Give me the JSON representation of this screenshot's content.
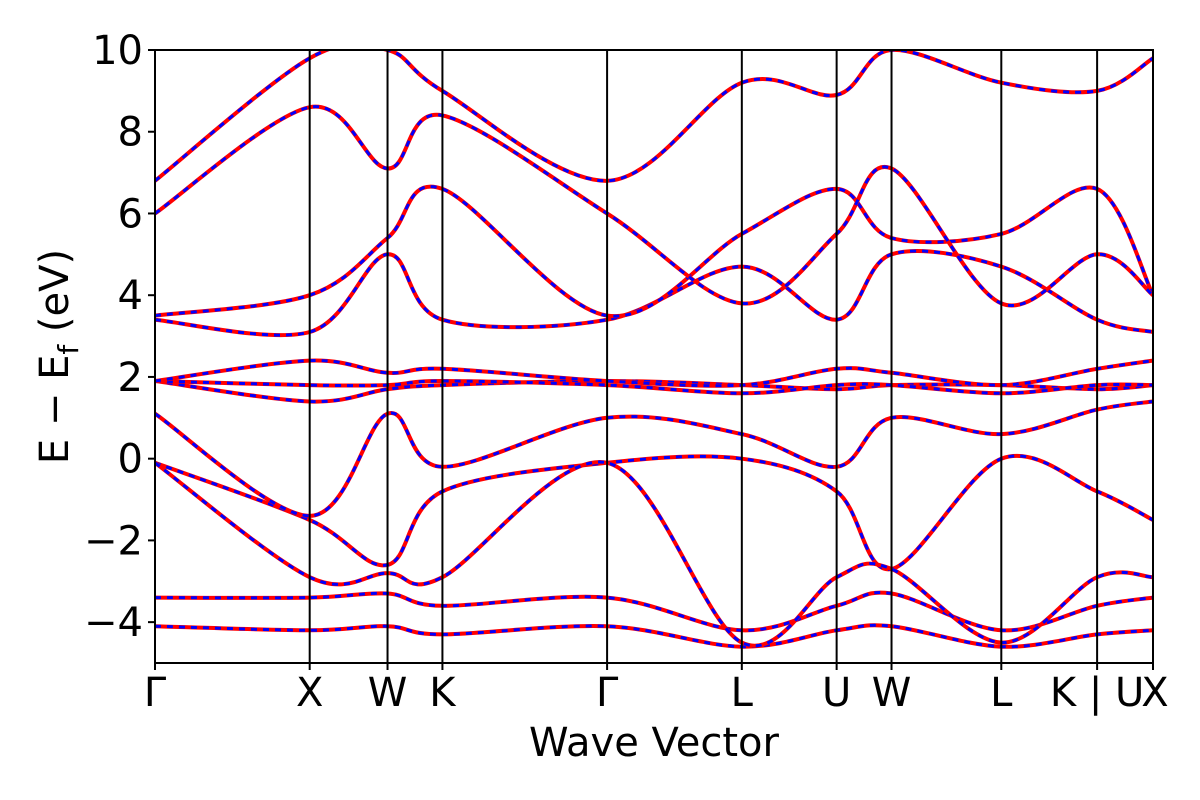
{
  "chart_data": {
    "type": "line",
    "title": "",
    "xlabel": "Wave Vector",
    "ylabel": "E − E_f (eV)",
    "ylabel_parts": {
      "main": "E  −  E",
      "sub": "f",
      "unit": " (eV)"
    },
    "ylim": [
      -5,
      10
    ],
    "yticks": [
      -4,
      -2,
      0,
      2,
      4,
      6,
      8,
      10
    ],
    "ytick_labels": [
      "−4",
      "−2",
      "0",
      "2",
      "4",
      "6",
      "8",
      "10"
    ],
    "xlim": [
      0,
      1
    ],
    "kpoints": [
      {
        "label": "Γ",
        "x": 0.0
      },
      {
        "label": "X",
        "x": 0.155
      },
      {
        "label": "W",
        "x": 0.233
      },
      {
        "label": "K",
        "x": 0.288
      },
      {
        "label": "Γ",
        "x": 0.453
      },
      {
        "label": "L",
        "x": 0.588
      },
      {
        "label": "U",
        "x": 0.683
      },
      {
        "label": "W",
        "x": 0.738
      },
      {
        "label": "L",
        "x": 0.848
      },
      {
        "label": "K | U",
        "x": 0.944
      },
      {
        "label": "X",
        "x": 1.0
      }
    ],
    "grid": false,
    "legend": "none",
    "series_style": [
      {
        "color": "#ff0000",
        "dash": "solid"
      },
      {
        "color": "#0000ff",
        "dash": "dashed"
      }
    ],
    "bands": [
      {
        "name": "",
        "x": [
          0,
          0.155,
          0.233,
          0.288,
          0.453,
          0.588,
          0.683,
          0.738,
          0.848,
          0.944,
          1.0
        ],
        "y": [
          -3.4,
          -3.4,
          -3.3,
          -3.6,
          -3.4,
          -4.2,
          -3.6,
          -3.3,
          -4.2,
          -3.6,
          -3.4
        ]
      },
      {
        "name": "",
        "x": [
          0,
          0.155,
          0.233,
          0.288,
          0.453,
          0.588,
          0.683,
          0.738,
          0.848,
          0.944,
          1.0
        ],
        "y": [
          -4.1,
          -4.2,
          -4.1,
          -4.3,
          -4.1,
          -4.6,
          -4.2,
          -4.1,
          -4.6,
          -4.3,
          -4.2
        ]
      },
      {
        "name": "",
        "x": [
          0,
          0.155,
          0.233,
          0.288,
          0.453,
          0.588,
          0.683,
          0.738,
          0.848,
          0.944,
          1.0
        ],
        "y": [
          -0.1,
          -1.5,
          -2.6,
          -0.8,
          -0.1,
          0.0,
          -0.8,
          -2.7,
          0.0,
          -0.8,
          -1.5
        ]
      },
      {
        "name": "",
        "x": [
          0,
          0.155,
          0.233,
          0.288,
          0.453,
          0.588,
          0.683,
          0.738,
          0.848,
          0.944,
          1.0
        ],
        "y": [
          -0.1,
          -2.9,
          -2.8,
          -2.9,
          -0.1,
          -4.5,
          -2.9,
          -2.7,
          -4.5,
          -2.9,
          -2.9
        ]
      },
      {
        "name": "",
        "x": [
          0,
          0.155,
          0.233,
          0.288,
          0.453,
          0.588,
          0.683,
          0.738,
          0.848,
          0.944,
          1.0
        ],
        "y": [
          1.1,
          -1.4,
          1.1,
          -0.2,
          1.0,
          0.6,
          -0.2,
          1.0,
          0.6,
          1.2,
          1.4
        ]
      },
      {
        "name": "",
        "x": [
          0,
          0.155,
          0.233,
          0.288,
          0.453,
          0.588,
          0.683,
          0.738,
          0.848,
          0.944,
          1.0
        ],
        "y": [
          1.9,
          1.4,
          1.7,
          1.8,
          1.9,
          1.8,
          1.7,
          1.8,
          1.8,
          1.7,
          1.8
        ]
      },
      {
        "name": "",
        "x": [
          0,
          0.155,
          0.233,
          0.288,
          0.453,
          0.588,
          0.683,
          0.738,
          0.848,
          0.944,
          1.0
        ],
        "y": [
          1.9,
          1.8,
          1.8,
          1.9,
          1.8,
          1.6,
          1.8,
          1.8,
          1.6,
          1.8,
          1.8
        ]
      },
      {
        "name": "",
        "x": [
          0,
          0.155,
          0.233,
          0.288,
          0.453,
          0.588,
          0.683,
          0.738,
          0.848,
          0.944,
          1.0
        ],
        "y": [
          1.9,
          2.4,
          2.1,
          2.2,
          1.9,
          1.8,
          2.2,
          2.1,
          1.8,
          2.2,
          2.4
        ]
      },
      {
        "name": "",
        "x": [
          0,
          0.155,
          0.233,
          0.288,
          0.453,
          0.588,
          0.683,
          0.738,
          0.848,
          0.944,
          1.0
        ],
        "y": [
          3.4,
          3.1,
          5.0,
          3.4,
          3.4,
          4.7,
          3.4,
          5.0,
          4.7,
          3.4,
          3.1
        ]
      },
      {
        "name": "",
        "x": [
          0,
          0.155,
          0.233,
          0.288,
          0.453,
          0.588,
          0.683,
          0.738,
          0.848,
          0.944,
          1.0
        ],
        "y": [
          3.5,
          4.0,
          5.4,
          6.6,
          3.5,
          5.5,
          6.6,
          5.4,
          5.5,
          6.6,
          4.0
        ]
      },
      {
        "name": "",
        "x": [
          0,
          0.155,
          0.233,
          0.288,
          0.453,
          0.588,
          0.683,
          0.738,
          0.848,
          0.944,
          1.0
        ],
        "y": [
          6.0,
          8.6,
          7.1,
          8.4,
          6.0,
          3.8,
          5.5,
          7.1,
          3.8,
          5.0,
          4.0
        ]
      },
      {
        "name": "",
        "x": [
          0,
          0.155,
          0.233,
          0.288,
          0.453,
          0.588,
          0.683,
          0.738,
          0.848,
          0.944,
          1.0
        ],
        "y": [
          6.8,
          9.8,
          10.0,
          9.0,
          6.8,
          9.2,
          8.9,
          10.0,
          9.2,
          9.0,
          9.8
        ]
      }
    ]
  }
}
